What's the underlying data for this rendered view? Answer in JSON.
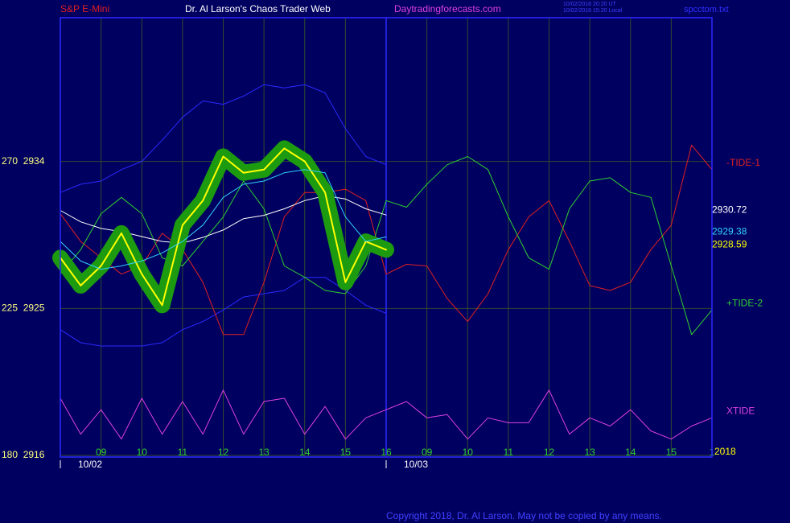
{
  "chart_data": {
    "type": "line",
    "instrument": "S&P E-Mini",
    "title": "Dr. Al Larson's Chaos Trader Web",
    "site": "Daytradingforecasts.com",
    "timestamps": [
      "10/02/2018 20:20 UT",
      "10/02/2018 15:20 Local"
    ],
    "file": "spcctom.txt",
    "copyright": "Copyright 2018, Dr. Al Larson. May not be copied by any means.",
    "year_label": "2018",
    "x": [
      0,
      0.5,
      1,
      1.5,
      2,
      2.5,
      3,
      3.5,
      4,
      4.5,
      5,
      5.5,
      6,
      6.5,
      7,
      7.5,
      8,
      8.5,
      9,
      9.5,
      10,
      10.5,
      11,
      11.5,
      12,
      12.5,
      13,
      13.5,
      14,
      14.5,
      15,
      15.5,
      16
    ],
    "xlim": [
      0,
      16
    ],
    "xticks": [
      {
        "value": 1,
        "label": "09"
      },
      {
        "value": 2,
        "label": "10"
      },
      {
        "value": 3,
        "label": "11"
      },
      {
        "value": 4,
        "label": "12"
      },
      {
        "value": 5,
        "label": "13"
      },
      {
        "value": 6,
        "label": "14"
      },
      {
        "value": 7,
        "label": "15"
      },
      {
        "value": 8,
        "label": "16"
      },
      {
        "value": 9,
        "label": "09"
      },
      {
        "value": 10,
        "label": "10"
      },
      {
        "value": 11,
        "label": "11"
      },
      {
        "value": 12,
        "label": "12"
      },
      {
        "value": 13,
        "label": "13"
      },
      {
        "value": 14,
        "label": "14"
      },
      {
        "value": 15,
        "label": "15"
      },
      {
        "value": 16,
        "label": "1"
      }
    ],
    "date_ticks": [
      {
        "value": 0,
        "label": "10/02"
      },
      {
        "value": 8,
        "label": "10/03"
      }
    ],
    "day_divider": 8,
    "ylim": [
      2916,
      2942.8
    ],
    "yticks": [
      {
        "value": 2934,
        "label": "270  2934"
      },
      {
        "value": 2925,
        "label": "225  2925"
      },
      {
        "value": 2916,
        "label": "180  2916"
      }
    ],
    "grid": true,
    "series": [
      {
        "color": "#2a2aff",
        "values": [
          2932.1,
          2932.6,
          2932.8,
          2933.5,
          2934.0,
          2935.3,
          2936.7,
          2937.7,
          2937.5,
          2938.0,
          2938.7,
          2938.5,
          2938.7,
          2938.2,
          2936.0,
          2934.3,
          2933.8,
          null,
          null,
          null,
          null,
          null,
          null,
          null,
          null,
          null,
          null,
          null,
          null,
          null,
          null,
          null,
          null
        ]
      },
      {
        "color": "#2a2aff",
        "values": [
          2923.7,
          2922.9,
          2922.7,
          2922.7,
          2922.7,
          2922.9,
          2923.7,
          2924.2,
          2924.9,
          2925.7,
          2925.9,
          2926.1,
          2926.9,
          2926.9,
          2926.1,
          2925.2,
          2924.7,
          null,
          null,
          null,
          null,
          null,
          null,
          null,
          null,
          null,
          null,
          null,
          null,
          null,
          null,
          null,
          null
        ]
      },
      {
        "name": "-TIDE-1",
        "color": "#e02020",
        "values": [
          2930.8,
          2929.1,
          2928.1,
          2927.1,
          2927.6,
          2929.6,
          2928.6,
          2926.6,
          2923.4,
          2923.4,
          2926.6,
          2930.6,
          2932.1,
          2932.1,
          2932.3,
          2931.6,
          2927.1,
          2927.7,
          2927.6,
          2925.6,
          2924.2,
          2925.9,
          2928.6,
          2930.6,
          2931.6,
          2929.1,
          2926.4,
          2926.1,
          2926.6,
          2928.6,
          2930.1,
          2935.0,
          2933.5
        ]
      },
      {
        "name": "+TIDE-2",
        "color": "#30d030",
        "values": [
          2927.1,
          2928.6,
          2930.8,
          2931.8,
          2930.8,
          2928.1,
          2927.6,
          2929.1,
          2930.6,
          2932.8,
          2931.1,
          2927.6,
          2926.9,
          2926.1,
          2925.9,
          2927.6,
          2931.6,
          2931.2,
          2932.6,
          2933.8,
          2934.3,
          2933.5,
          2930.6,
          2928.1,
          2927.4,
          2931.1,
          2932.8,
          2933.0,
          2932.1,
          2931.8,
          2927.6,
          2923.4,
          2924.9
        ]
      },
      {
        "name": "XTIDE",
        "color": "#e040e0",
        "values": [
          2919.5,
          2917.3,
          2918.8,
          2917.0,
          2919.5,
          2917.3,
          2919.3,
          2917.3,
          2920.0,
          2917.3,
          2919.3,
          2919.5,
          2917.3,
          2919.0,
          2917.0,
          2918.3,
          2918.8,
          2919.3,
          2918.3,
          2918.5,
          2917.0,
          2918.3,
          2918.0,
          2918.0,
          2920.0,
          2917.3,
          2918.3,
          2917.8,
          2918.8,
          2917.5,
          2917.0,
          2917.8,
          2918.3
        ]
      },
      {
        "color": "#ffffff",
        "end_label": true,
        "values": [
          2931.0,
          2930.3,
          2929.9,
          2929.7,
          2929.4,
          2929.1,
          2929.0,
          2929.35,
          2929.8,
          2930.5,
          2930.7,
          2931.1,
          2931.6,
          2931.9,
          2931.7,
          2931.1,
          2930.72,
          null,
          null,
          null,
          null,
          null,
          null,
          null,
          null,
          null,
          null,
          null,
          null,
          null,
          null,
          null,
          null
        ]
      },
      {
        "color": "#ffff00",
        "halo_color": "#1c9a10",
        "end_label": true,
        "values": [
          2928.1,
          2926.4,
          2927.6,
          2929.6,
          2927.1,
          2925.2,
          2930.1,
          2931.6,
          2934.3,
          2933.3,
          2933.5,
          2934.8,
          2934.0,
          2932.1,
          2926.6,
          2929.1,
          2928.59,
          null,
          null,
          null,
          null,
          null,
          null,
          null,
          null,
          null,
          null,
          null,
          null,
          null,
          null,
          null,
          null
        ]
      },
      {
        "color": "#30d0ff",
        "end_label": true,
        "values": [
          2929.1,
          2927.9,
          2927.4,
          2927.6,
          2927.9,
          2928.4,
          2929.1,
          2930.1,
          2931.8,
          2932.6,
          2932.8,
          2933.3,
          2933.5,
          2933.3,
          2930.6,
          2929.1,
          2929.38,
          null,
          null,
          null,
          null,
          null,
          null,
          null,
          null,
          null,
          null,
          null,
          null,
          null,
          null,
          null,
          null
        ]
      }
    ]
  }
}
